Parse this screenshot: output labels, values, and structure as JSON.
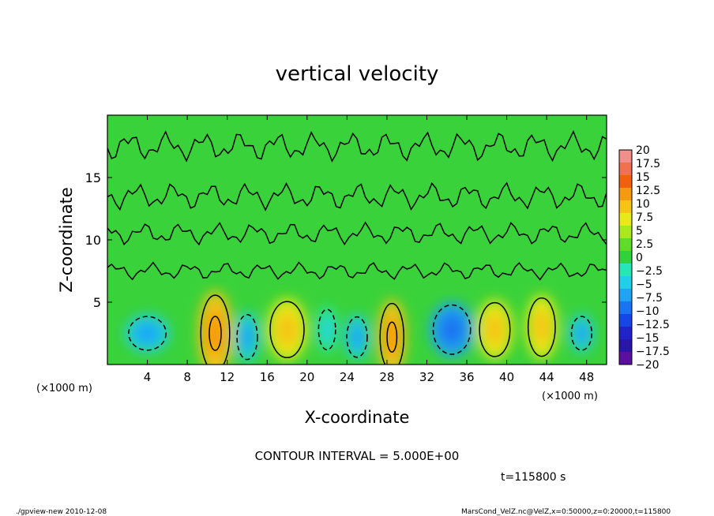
{
  "chart_data": {
    "type": "heatmap",
    "title": "vertical velocity",
    "xlabel": "X-coordinate",
    "ylabel": "Z-coordinate",
    "x_unit_left": "(×1000 m)",
    "x_unit_right": "(×1000 m)",
    "xlim": [
      0,
      50
    ],
    "ylim": [
      0,
      20
    ],
    "x_ticks": [
      4,
      8,
      12,
      16,
      20,
      24,
      28,
      32,
      36,
      40,
      44,
      48
    ],
    "y_ticks": [
      5,
      10,
      15
    ],
    "contour_interval_text": "CONTOUR INTERVAL = 5.000E+00",
    "time_text": "t=115800 s",
    "colorbar": {
      "levels": [
        -20,
        -17.5,
        -15,
        -12.5,
        -10,
        -7.5,
        -5,
        -2.5,
        0,
        2.5,
        5,
        7.5,
        10,
        12.5,
        15,
        17.5,
        20
      ],
      "labels": [
        "−20",
        "−17.5",
        "−15",
        "−12.5",
        "−10",
        "−7.5",
        "−5",
        "−2.5",
        "0",
        "2.5",
        "5",
        "7.5",
        "10",
        "12.5",
        "15",
        "17.5",
        "20"
      ],
      "colors": [
        "#5a0fa0",
        "#2b15a8",
        "#1f23c8",
        "#1646e6",
        "#1a73f0",
        "#1fa3f2",
        "#21cfe8",
        "#27e6b7",
        "#2fd23a",
        "#5fdc2a",
        "#a8e81e",
        "#e6ea18",
        "#f5c414",
        "#f49a10",
        "#f1600c",
        "#f07050",
        "#f28e8a"
      ]
    },
    "cells": [
      {
        "x": 4,
        "z": 2.5,
        "rx": 2.2,
        "rz": 1.5,
        "value": -5
      },
      {
        "x": 10.8,
        "z": 2.5,
        "rx": 1.7,
        "rz": 3.4,
        "value": 10
      },
      {
        "x": 14,
        "z": 2.2,
        "rx": 1.2,
        "rz": 2.0,
        "value": -5
      },
      {
        "x": 18,
        "z": 2.8,
        "rx": 2.0,
        "rz": 2.5,
        "value": 7.5
      },
      {
        "x": 22,
        "z": 2.8,
        "rx": 1.0,
        "rz": 1.8,
        "value": -2.5
      },
      {
        "x": 25,
        "z": 2.2,
        "rx": 1.2,
        "rz": 1.8,
        "value": -5
      },
      {
        "x": 28.5,
        "z": 2.2,
        "rx": 1.4,
        "rz": 3.0,
        "value": 10
      },
      {
        "x": 34.5,
        "z": 2.8,
        "rx": 2.2,
        "rz": 2.2,
        "value": -7.5
      },
      {
        "x": 38.8,
        "z": 2.8,
        "rx": 1.8,
        "rz": 2.4,
        "value": 7.5
      },
      {
        "x": 43.5,
        "z": 3.0,
        "rx": 1.6,
        "rz": 2.6,
        "value": 7.5
      },
      {
        "x": 47.5,
        "z": 2.5,
        "rx": 1.2,
        "rz": 1.5,
        "value": -5
      }
    ]
  },
  "footer": {
    "left": "./gpview-new  2010-12-08",
    "right": "MarsCond_VelZ.nc@VelZ,x=0:50000,z=0:20000,t=115800"
  }
}
